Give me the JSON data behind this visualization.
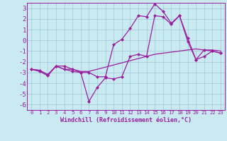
{
  "background_color": "#c8eaf0",
  "grid_color": "#a0c8d8",
  "line_color": "#9b1ea0",
  "xlim": [
    -0.5,
    23.5
  ],
  "ylim": [
    -6.5,
    3.5
  ],
  "xlabel": "Windchill (Refroidissement éolien,°C)",
  "xticks": [
    0,
    1,
    2,
    3,
    4,
    5,
    6,
    7,
    8,
    9,
    10,
    11,
    12,
    13,
    14,
    15,
    16,
    17,
    18,
    19,
    20,
    21,
    22,
    23
  ],
  "yticks": [
    -6,
    -5,
    -4,
    -3,
    -2,
    -1,
    0,
    1,
    2,
    3
  ],
  "series1_x": [
    0,
    1,
    2,
    3,
    4,
    5,
    6,
    7,
    8,
    9,
    10,
    11,
    12,
    13,
    14,
    15,
    16,
    17,
    18,
    19,
    20,
    21,
    22,
    23
  ],
  "series1_y": [
    -2.7,
    -2.9,
    -3.3,
    -2.4,
    -2.7,
    -2.9,
    -3.0,
    -5.7,
    -4.4,
    -3.5,
    -3.6,
    -3.4,
    -1.5,
    -1.3,
    -1.5,
    2.3,
    2.2,
    1.5,
    2.3,
    -0.1,
    -1.8,
    -0.9,
    -1.0,
    -1.2
  ],
  "series2_x": [
    0,
    1,
    2,
    3,
    4,
    5,
    6,
    7,
    8,
    9,
    10,
    11,
    12,
    13,
    14,
    15,
    16,
    17,
    18,
    19,
    20,
    21,
    22,
    23
  ],
  "series2_y": [
    -2.7,
    -2.8,
    -3.2,
    -2.4,
    -2.7,
    -2.7,
    -2.9,
    -2.9,
    -2.7,
    -2.5,
    -2.3,
    -2.1,
    -1.9,
    -1.7,
    -1.5,
    -1.3,
    -1.2,
    -1.1,
    -1.0,
    -0.9,
    -0.8,
    -0.9,
    -0.9,
    -1.0
  ],
  "series3_x": [
    0,
    1,
    2,
    3,
    4,
    5,
    6,
    7,
    8,
    9,
    10,
    11,
    12,
    13,
    14,
    15,
    16,
    17,
    18,
    19,
    20,
    21,
    22,
    23
  ],
  "series3_y": [
    -2.7,
    -2.8,
    -3.2,
    -2.4,
    -2.4,
    -2.7,
    -3.0,
    -3.0,
    -3.4,
    -3.4,
    -0.4,
    0.1,
    1.1,
    2.3,
    2.2,
    3.4,
    2.7,
    1.6,
    2.3,
    0.2,
    -1.8,
    -1.5,
    -1.0,
    -1.2
  ],
  "xlabel_fontsize": 6,
  "xtick_fontsize": 5.2,
  "ytick_fontsize": 6.5,
  "marker_size": 2.5,
  "line_width": 0.9
}
